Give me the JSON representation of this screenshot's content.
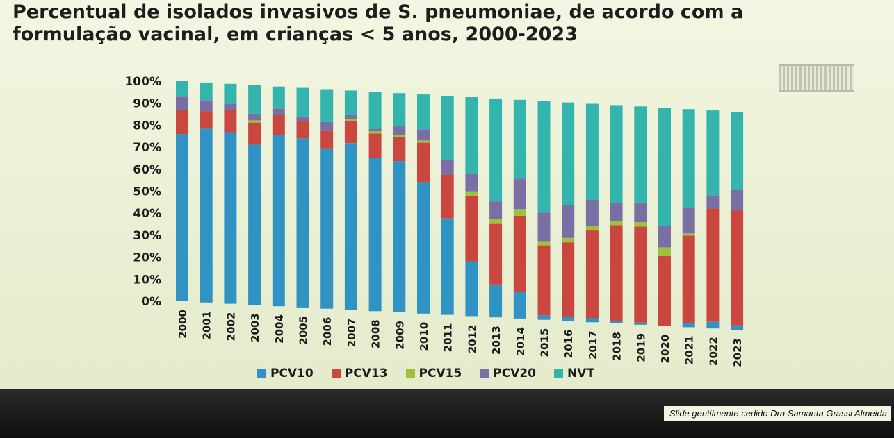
{
  "slide": {
    "title_line1": "Percentual de isolados invasivos de S. pneumoniae, de acordo com a",
    "title_line2": "formulação vacinal, em crianças < 5 anos, 2000-2023",
    "credit": "Slide gentilmente cedido Dra Samanta Grassi Almeida"
  },
  "chart_data": {
    "type": "bar",
    "stacked": true,
    "title": "Percentual de isolados invasivos de S. pneumoniae, de acordo com a formulação vacinal, em crianças < 5 anos, 2000-2023",
    "xlabel": "",
    "ylabel": "",
    "ylim": [
      0,
      100
    ],
    "yticks": [
      "0%",
      "10%",
      "20%",
      "30%",
      "40%",
      "50%",
      "60%",
      "70%",
      "80%",
      "90%",
      "100%"
    ],
    "legend_position": "bottom",
    "categories": [
      "2000",
      "2001",
      "2002",
      "2003",
      "2004",
      "2005",
      "2006",
      "2007",
      "2008",
      "2009",
      "2010",
      "2011",
      "2012",
      "2013",
      "2014",
      "2015",
      "2016",
      "2017",
      "2018",
      "2019",
      "2020",
      "2021",
      "2022",
      "2023"
    ],
    "series": [
      {
        "name": "PCV10",
        "color": "#2f93c4",
        "values": [
          76,
          79,
          78,
          73,
          78,
          77,
          73,
          76,
          70,
          69,
          60,
          44,
          25,
          15,
          12,
          2,
          2,
          2,
          1,
          1,
          0,
          2,
          3,
          2
        ]
      },
      {
        "name": "PCV13",
        "color": "#c9473e",
        "values": [
          11,
          8,
          10,
          10,
          9,
          8,
          8,
          10,
          11,
          11,
          18,
          20,
          30,
          28,
          35,
          32,
          34,
          40,
          44,
          44,
          32,
          40,
          52,
          53
        ]
      },
      {
        "name": "PCV15",
        "color": "#9cc13b",
        "values": [
          0,
          0,
          0,
          1,
          0,
          0,
          0,
          1,
          1,
          1,
          1,
          0,
          2,
          2,
          3,
          2,
          2,
          2,
          2,
          2,
          4,
          1,
          0,
          0
        ]
      },
      {
        "name": "PCV20",
        "color": "#7a6fa4",
        "values": [
          6,
          5,
          3,
          3,
          3,
          2,
          4,
          2,
          1,
          4,
          5,
          7,
          8,
          8,
          14,
          13,
          15,
          12,
          8,
          9,
          10,
          12,
          6,
          9
        ]
      },
      {
        "name": "NVT",
        "color": "#33b5ae",
        "values": [
          7,
          8,
          9,
          13,
          10,
          13,
          15,
          11,
          17,
          15,
          16,
          29,
          35,
          47,
          36,
          51,
          47,
          44,
          45,
          44,
          54,
          45,
          39,
          36
        ]
      }
    ]
  }
}
